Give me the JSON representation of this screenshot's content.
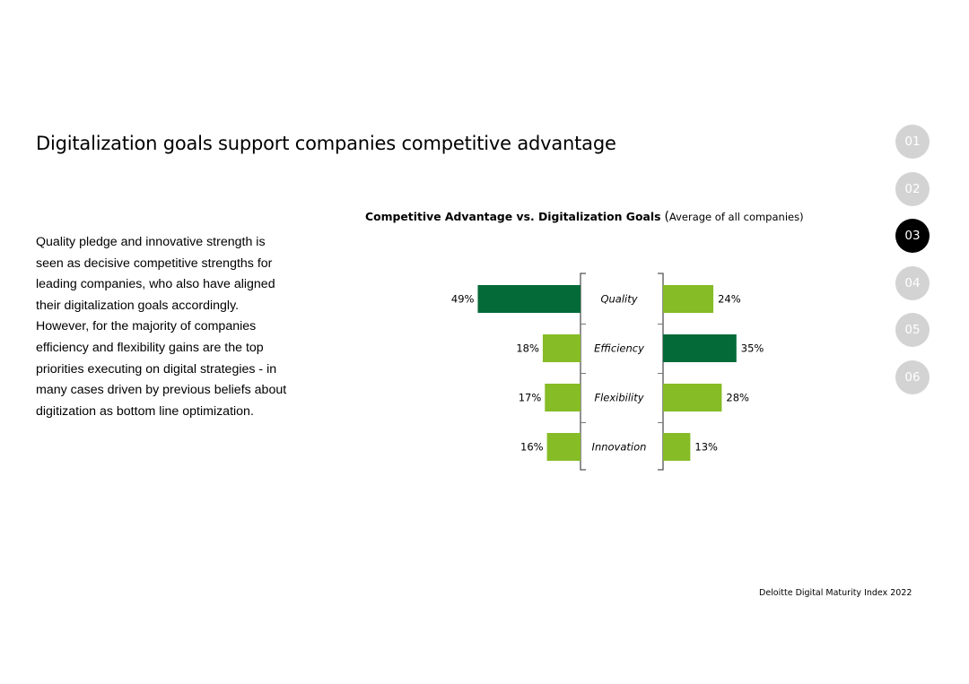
{
  "page": {
    "title": "Digitalization goals support companies competitive advantage",
    "paragraphs": [
      "Quality pledge and innovative strength is seen as decisive competitive strengths for leading companies, who also have aligned their digitalization goals accordingly.",
      "However, for the majority of companies efficiency and flexibility gains are the top priorities executing on digital strategies - in many cases driven by previous beliefs about digitization as bottom line optimization."
    ],
    "footer": "Deloitte Digital Maturity Index 2022"
  },
  "nav": {
    "items": [
      {
        "label": "01",
        "active": false
      },
      {
        "label": "02",
        "active": false
      },
      {
        "label": "03",
        "active": true
      },
      {
        "label": "04",
        "active": false
      },
      {
        "label": "05",
        "active": false
      },
      {
        "label": "06",
        "active": false
      }
    ]
  },
  "colors": {
    "dark_green": "#046a38",
    "light_green": "#86bc25",
    "nav_inactive": "#d3d3d3",
    "nav_active": "#000000"
  },
  "chart_data": {
    "type": "bar",
    "orientation": "horizontal-butterfly",
    "title": "Competitive Advantage vs. Digitalization Goals",
    "title_paren_open": "(",
    "subtitle": "Average of all companies)",
    "categories": [
      "Quality",
      "Efficiency",
      "Flexibility",
      "Innovation"
    ],
    "series": [
      {
        "values": [
          49,
          18,
          17,
          16
        ],
        "labels": [
          "49%",
          "18%",
          "17%",
          "16%"
        ],
        "side": "left",
        "highlight_index": 0
      },
      {
        "values": [
          24,
          35,
          28,
          13
        ],
        "labels": [
          "24%",
          "35%",
          "28%",
          "13%"
        ],
        "side": "right",
        "highlight_index": 1
      }
    ],
    "unit": "%"
  }
}
